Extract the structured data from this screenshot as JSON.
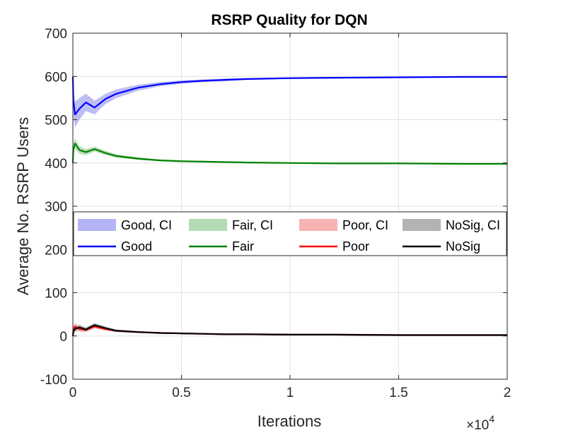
{
  "chart_data": {
    "type": "line",
    "title": "RSRP Quality for DQN",
    "xlabel": "Iterations",
    "ylabel": "Average No. RSRP Users",
    "x_exponent_label": "×10",
    "x_exponent_power": "4",
    "xlim": [
      0,
      2
    ],
    "ylim": [
      -100,
      700
    ],
    "x_ticks": [
      0,
      0.5,
      1,
      1.5,
      2
    ],
    "x_tick_labels": [
      "0",
      "0.5",
      "1",
      "1.5",
      "2"
    ],
    "y_ticks": [
      -100,
      0,
      100,
      200,
      300,
      400,
      500,
      600,
      700
    ],
    "y_tick_labels": [
      "-100",
      "0",
      "100",
      "200",
      "300",
      "400",
      "500",
      "600",
      "700"
    ],
    "grid": true,
    "legend_position": "center",
    "legend_entries": [
      {
        "label": "Good, CI",
        "kind": "band",
        "color": "#b3b3f5"
      },
      {
        "label": "Fair, CI",
        "kind": "band",
        "color": "#b3dbb3"
      },
      {
        "label": "Poor, CI",
        "kind": "band",
        "color": "#f7b3b3"
      },
      {
        "label": "NoSig, CI",
        "kind": "band",
        "color": "#b3b3b3"
      },
      {
        "label": "Good",
        "kind": "line",
        "color": "#0000ff"
      },
      {
        "label": "Fair",
        "kind": "line",
        "color": "#008000"
      },
      {
        "label": "Poor",
        "kind": "line",
        "color": "#ff0000"
      },
      {
        "label": "NoSig",
        "kind": "line",
        "color": "#000000"
      }
    ],
    "series": [
      {
        "name": "Good",
        "color": "#0000ff",
        "ci_color": "#b3b3f5",
        "x": [
          0,
          0.002,
          0.01,
          0.03,
          0.06,
          0.1,
          0.15,
          0.2,
          0.3,
          0.4,
          0.5,
          0.6,
          0.7,
          0.8,
          1.0,
          1.2,
          1.5,
          1.8,
          2.0
        ],
        "values": [
          600,
          545,
          512,
          525,
          540,
          528,
          548,
          560,
          574,
          582,
          587,
          590,
          592,
          594,
          596,
          597,
          598,
          599,
          599
        ],
        "ci_half_width": [
          10,
          35,
          30,
          25,
          20,
          16,
          12,
          10,
          7,
          5,
          4,
          3,
          3,
          2,
          2,
          2,
          1,
          1,
          1
        ]
      },
      {
        "name": "Fair",
        "color": "#008000",
        "ci_color": "#b3dbb3",
        "x": [
          0,
          0.002,
          0.01,
          0.03,
          0.06,
          0.1,
          0.15,
          0.2,
          0.3,
          0.4,
          0.5,
          0.6,
          0.7,
          0.8,
          1.0,
          1.2,
          1.5,
          1.8,
          2.0
        ],
        "values": [
          400,
          430,
          445,
          430,
          425,
          432,
          423,
          416,
          410,
          406,
          404,
          403,
          402,
          401,
          400,
          399,
          399,
          398,
          398
        ],
        "ci_half_width": [
          8,
          14,
          12,
          9,
          7,
          6,
          5,
          4,
          3,
          2,
          2,
          2,
          1,
          1,
          1,
          1,
          1,
          1,
          1
        ]
      },
      {
        "name": "Poor",
        "color": "#ff0000",
        "ci_color": "#f7b3b3",
        "x": [
          0,
          0.002,
          0.01,
          0.03,
          0.06,
          0.1,
          0.15,
          0.2,
          0.3,
          0.4,
          0.5,
          0.6,
          0.7,
          0.8,
          1.0,
          1.2,
          1.5,
          1.8,
          2.0
        ],
        "values": [
          0,
          15,
          22,
          16,
          14,
          22,
          16,
          12,
          9,
          7,
          6,
          5,
          4,
          4,
          3,
          3,
          2,
          2,
          2
        ],
        "ci_half_width": [
          6,
          9,
          8,
          6,
          5,
          5,
          4,
          3,
          2,
          2,
          1,
          1,
          1,
          1,
          1,
          1,
          1,
          1,
          1
        ]
      },
      {
        "name": "NoSig",
        "color": "#000000",
        "ci_color": "#b3b3b3",
        "x": [
          0,
          0.002,
          0.01,
          0.03,
          0.06,
          0.1,
          0.15,
          0.2,
          0.3,
          0.4,
          0.5,
          0.6,
          0.7,
          0.8,
          1.0,
          1.2,
          1.5,
          1.8,
          2.0
        ],
        "values": [
          0,
          10,
          16,
          20,
          15,
          25,
          18,
          12,
          9,
          7,
          6,
          5,
          4,
          4,
          3,
          3,
          2,
          2,
          2
        ],
        "ci_half_width": [
          6,
          8,
          7,
          6,
          5,
          5,
          4,
          3,
          2,
          2,
          1,
          1,
          1,
          1,
          1,
          1,
          1,
          1,
          1
        ]
      }
    ]
  }
}
